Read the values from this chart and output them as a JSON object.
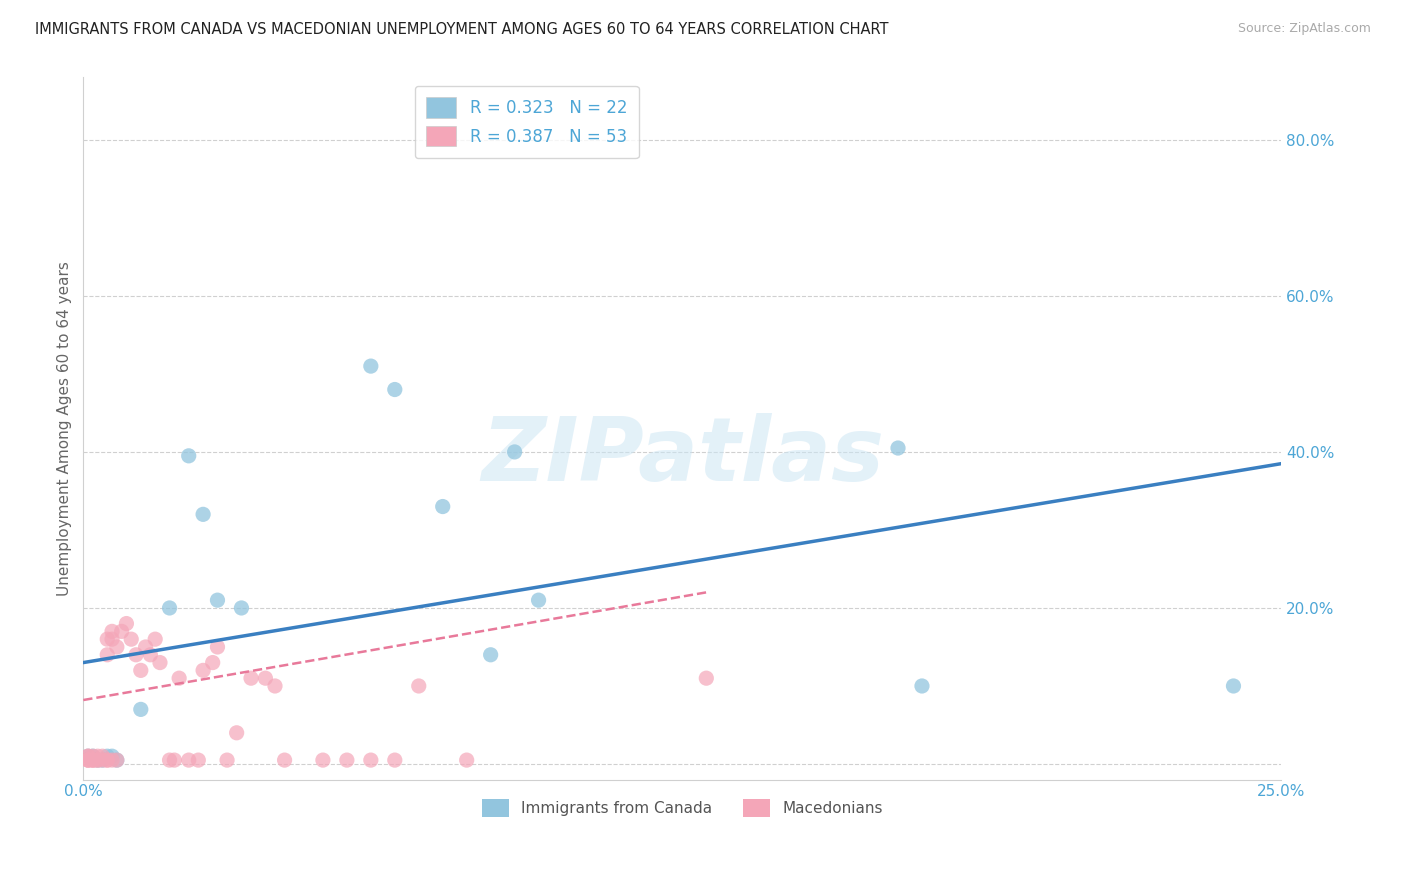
{
  "title": "IMMIGRANTS FROM CANADA VS MACEDONIAN UNEMPLOYMENT AMONG AGES 60 TO 64 YEARS CORRELATION CHART",
  "source": "Source: ZipAtlas.com",
  "ylabel": "Unemployment Among Ages 60 to 64 years",
  "xlim": [
    0.0,
    0.25
  ],
  "ylim": [
    -0.02,
    0.88
  ],
  "yticks": [
    0.0,
    0.2,
    0.4,
    0.6,
    0.8
  ],
  "xticks": [
    0.0,
    0.05,
    0.1,
    0.15,
    0.2,
    0.25
  ],
  "xtick_labels_show": [
    "0.0%",
    "",
    "",
    "",
    "",
    "25.0%"
  ],
  "ytick_labels_show": [
    "",
    "20.0%",
    "40.0%",
    "60.0%",
    "80.0%"
  ],
  "legend_r1": "R = 0.323",
  "legend_n1": "N = 22",
  "legend_r2": "R = 0.387",
  "legend_n2": "N = 53",
  "legend_label1": "Immigrants from Canada",
  "legend_label2": "Macedonians",
  "watermark": "ZIPatlas",
  "blue_color": "#92c5de",
  "pink_color": "#f4a6b8",
  "blue_line_color": "#3a7fc1",
  "pink_line_color": "#e8799a",
  "axis_label_color": "#4da6d6",
  "legend_text_color": "#4da6d6",
  "blue_x": [
    0.001,
    0.002,
    0.003,
    0.004,
    0.005,
    0.006,
    0.007,
    0.012,
    0.018,
    0.022,
    0.025,
    0.028,
    0.033,
    0.06,
    0.065,
    0.075,
    0.085,
    0.09,
    0.095,
    0.17,
    0.175,
    0.24
  ],
  "blue_y": [
    0.01,
    0.01,
    0.005,
    0.005,
    0.01,
    0.01,
    0.005,
    0.07,
    0.2,
    0.395,
    0.32,
    0.21,
    0.2,
    0.51,
    0.48,
    0.33,
    0.14,
    0.4,
    0.21,
    0.405,
    0.1,
    0.1
  ],
  "pink_x": [
    0.001,
    0.001,
    0.001,
    0.001,
    0.001,
    0.002,
    0.002,
    0.002,
    0.002,
    0.003,
    0.003,
    0.003,
    0.004,
    0.004,
    0.005,
    0.005,
    0.005,
    0.005,
    0.006,
    0.006,
    0.006,
    0.007,
    0.007,
    0.008,
    0.009,
    0.01,
    0.011,
    0.012,
    0.013,
    0.014,
    0.015,
    0.016,
    0.018,
    0.019,
    0.02,
    0.022,
    0.024,
    0.025,
    0.027,
    0.028,
    0.03,
    0.032,
    0.035,
    0.038,
    0.04,
    0.042,
    0.05,
    0.055,
    0.06,
    0.065,
    0.07,
    0.08,
    0.13
  ],
  "pink_y": [
    0.01,
    0.01,
    0.005,
    0.005,
    0.005,
    0.01,
    0.005,
    0.005,
    0.005,
    0.01,
    0.005,
    0.005,
    0.01,
    0.005,
    0.14,
    0.16,
    0.005,
    0.005,
    0.16,
    0.17,
    0.005,
    0.15,
    0.005,
    0.17,
    0.18,
    0.16,
    0.14,
    0.12,
    0.15,
    0.14,
    0.16,
    0.13,
    0.005,
    0.005,
    0.11,
    0.005,
    0.005,
    0.12,
    0.13,
    0.15,
    0.005,
    0.04,
    0.11,
    0.11,
    0.1,
    0.005,
    0.005,
    0.005,
    0.005,
    0.005,
    0.1,
    0.005,
    0.11
  ],
  "blue_trend_x": [
    0.0,
    0.25
  ],
  "blue_trend_y": [
    0.13,
    0.385
  ],
  "pink_trend_x": [
    0.0,
    0.13
  ],
  "pink_trend_y": [
    0.082,
    0.22
  ]
}
